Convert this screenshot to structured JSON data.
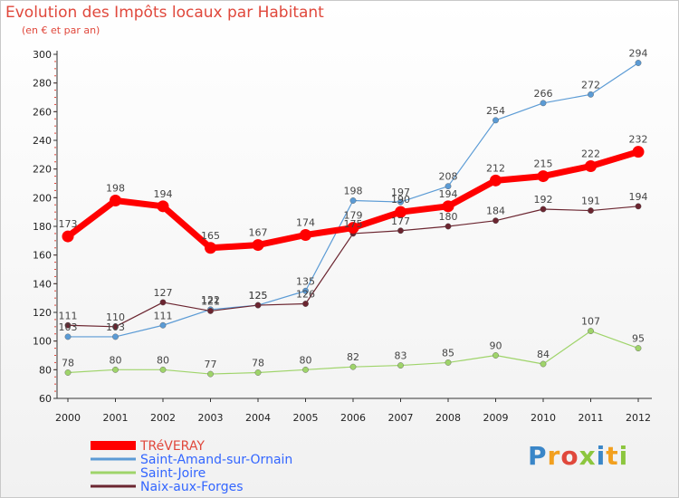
{
  "header": {
    "title": "Evolution des Impôts locaux par Habitant",
    "subtitle": "(en € et par an)"
  },
  "logo": {
    "text": "Proxiti",
    "letters": [
      "P",
      "r",
      "o",
      "x",
      "i",
      "t",
      "i"
    ]
  },
  "chart_data": {
    "type": "line",
    "title": "Evolution des Impôts locaux par Habitant",
    "subtitle": "(en € et par an)",
    "xlabel": "",
    "ylabel": "",
    "x": [
      "2000",
      "2001",
      "2002",
      "2003",
      "2004",
      "2005",
      "2006",
      "2007",
      "2008",
      "2009",
      "2010",
      "2011",
      "2012"
    ],
    "ylim": [
      60,
      300
    ],
    "yticks": [
      60,
      80,
      100,
      120,
      140,
      160,
      180,
      200,
      220,
      240,
      260,
      280,
      300
    ],
    "grid": false,
    "legend_position": "bottom-left",
    "series": [
      {
        "name": "Saint-Amand-sur-Ornain",
        "color": "#5b9bd5",
        "values": [
          103,
          103,
          111,
          122,
          125,
          135,
          198,
          197,
          208,
          254,
          266,
          272,
          294
        ]
      },
      {
        "name": "Saint-Joire",
        "color": "#9fd46a",
        "values": [
          78,
          80,
          80,
          77,
          78,
          80,
          82,
          83,
          85,
          90,
          84,
          107,
          95
        ]
      },
      {
        "name": "Naix-aux-Forges",
        "color": "#6b2530",
        "values": [
          111,
          110,
          127,
          121,
          125,
          126,
          175,
          177,
          180,
          184,
          192,
          191,
          194
        ]
      },
      {
        "name": "TRéVERAY",
        "color": "#ff0000",
        "values": [
          173,
          198,
          194,
          165,
          167,
          174,
          179,
          190,
          194,
          212,
          215,
          222,
          232
        ]
      }
    ],
    "legend": [
      "TRéVERAY",
      "Saint-Amand-sur-Ornain",
      "Saint-Joire",
      "Naix-aux-Forges"
    ]
  }
}
